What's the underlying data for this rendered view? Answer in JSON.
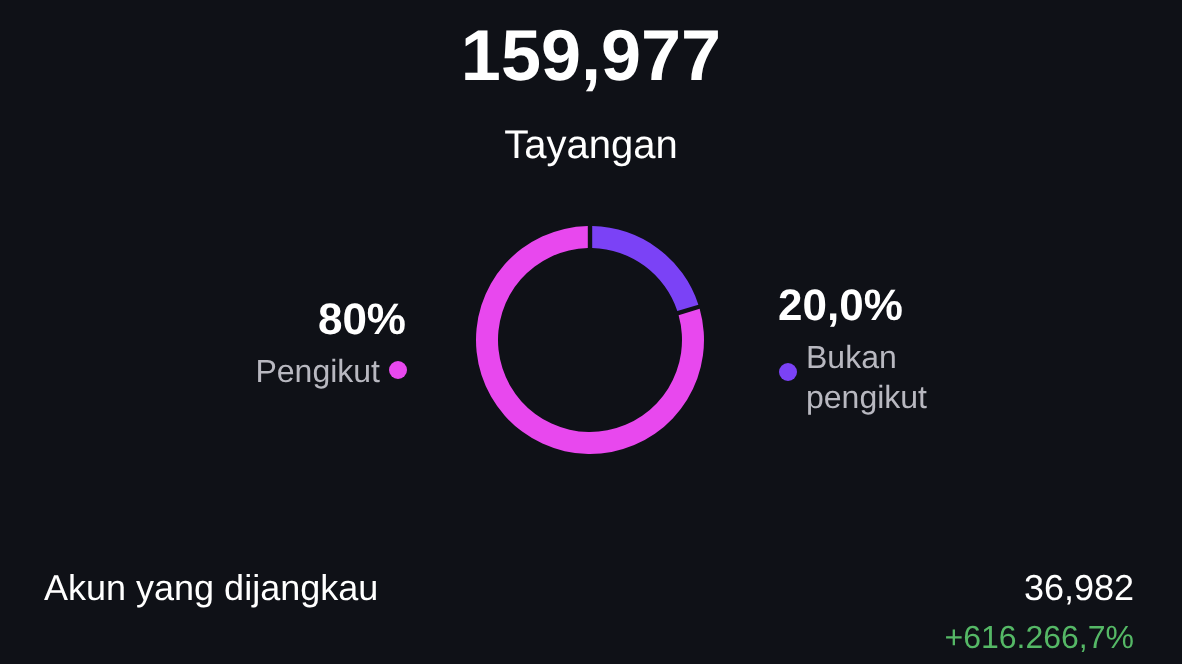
{
  "chart_data": {
    "type": "donut",
    "title": "159,977",
    "subtitle": "Tayangan",
    "categories": [
      "Bukan pengikut",
      "Pengikut"
    ],
    "values": [
      20,
      80
    ],
    "value_labels": [
      "20,0%",
      "80%"
    ],
    "colors": [
      "#7b42f6",
      "#e848ee"
    ],
    "annotations": [
      "Akun yang dijangkau",
      "36,982",
      "+616.266,7%"
    ]
  }
}
